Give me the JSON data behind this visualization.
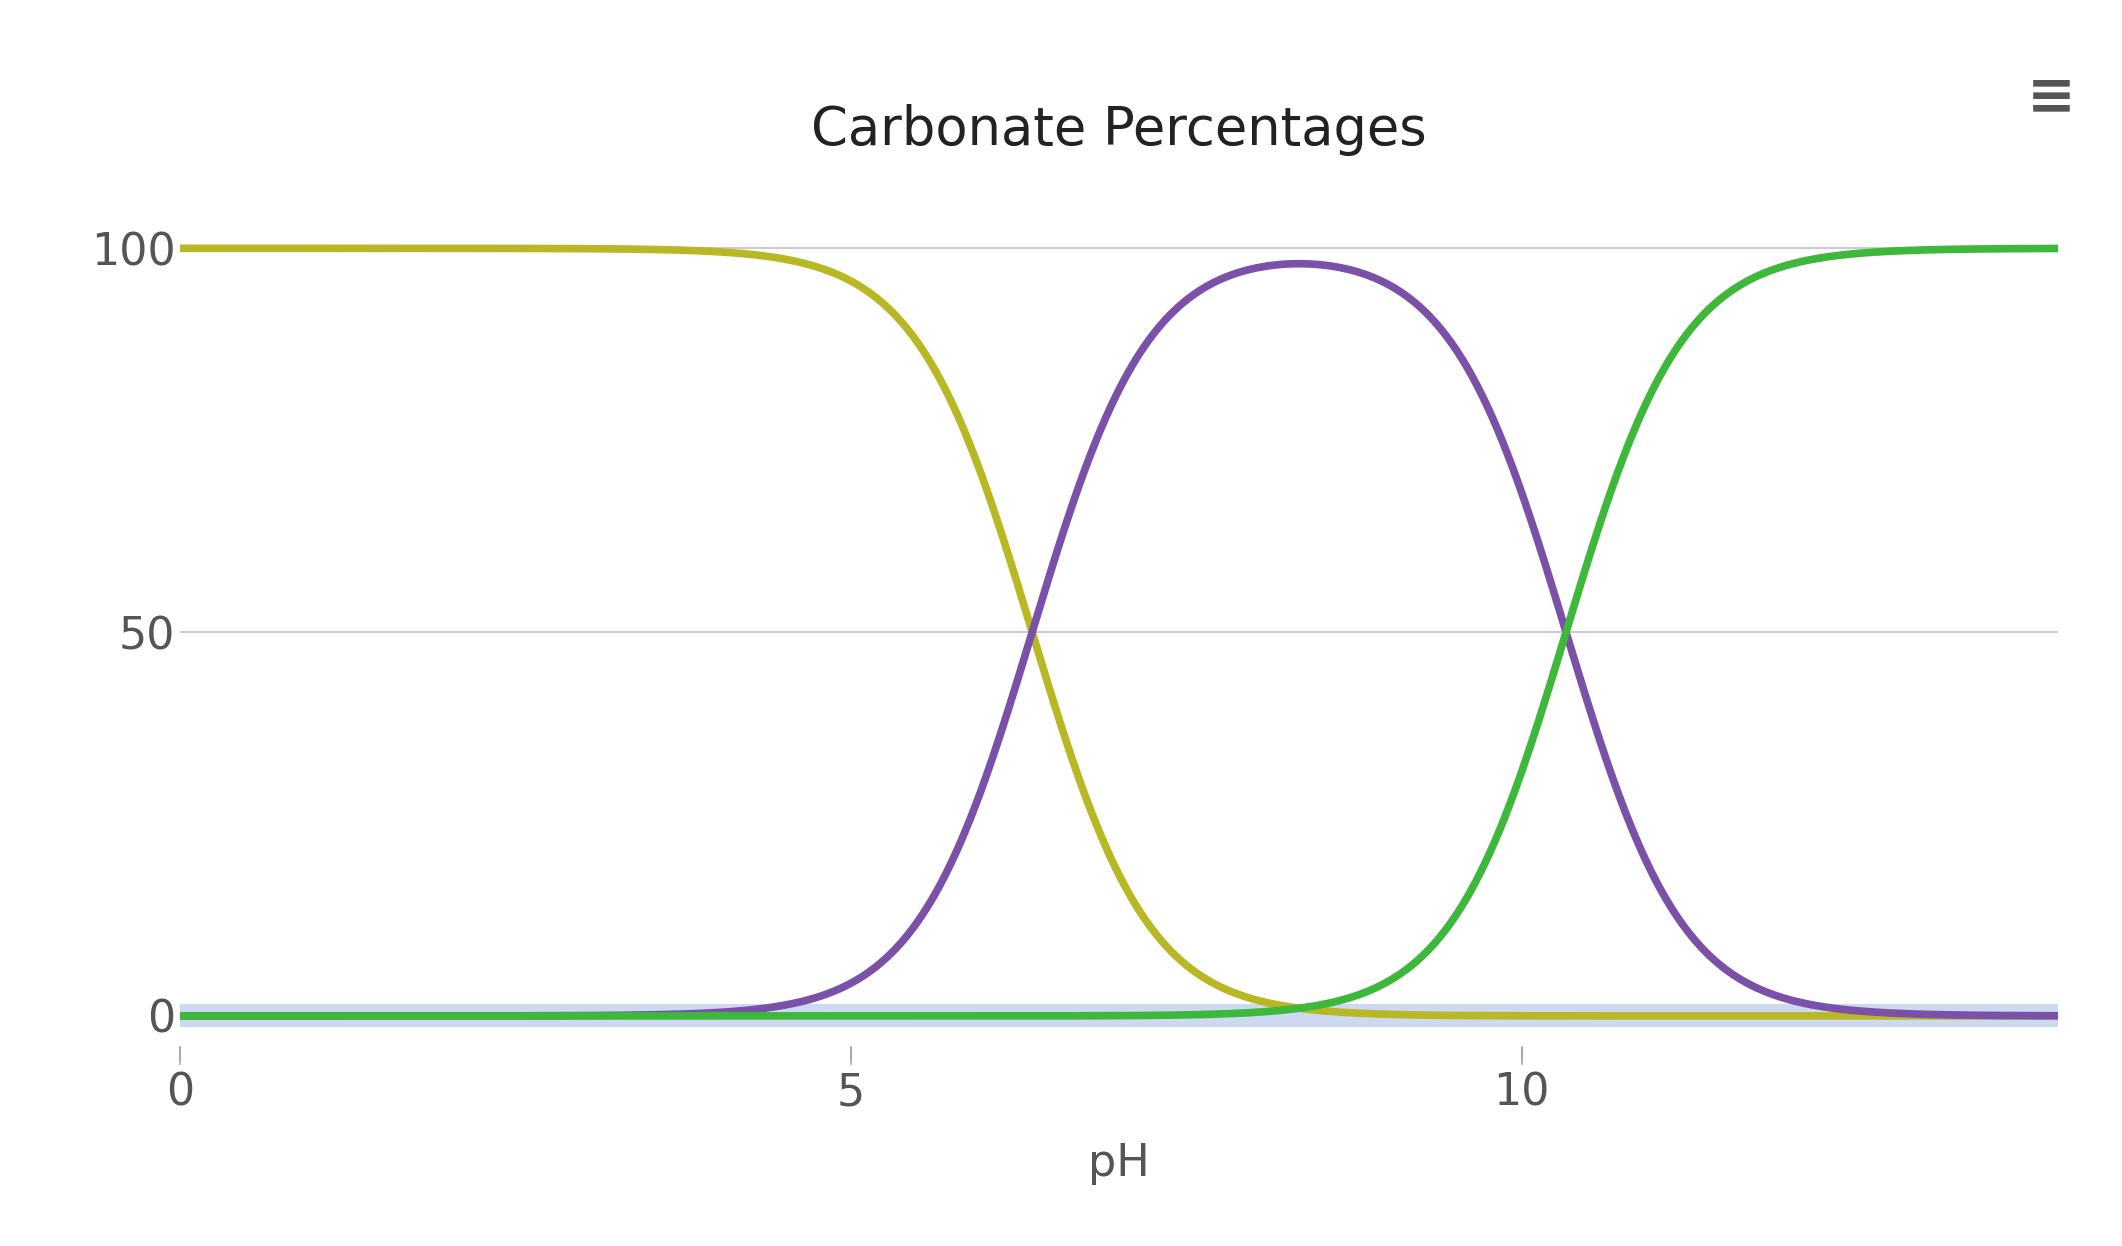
{
  "title": "Carbonate Percentages",
  "xlabel": "pH",
  "xlim": [
    0,
    14
  ],
  "ylim": [
    -4,
    108
  ],
  "xticks": [
    0,
    5,
    10
  ],
  "yticks": [
    0,
    50,
    100
  ],
  "pH_range": [
    0,
    14
  ],
  "pKa1": 6.35,
  "pKa2": 10.33,
  "line_colors": {
    "H2CO3": "#b8b825",
    "HCO3": "#7b50a8",
    "CO3": "#3db83a",
    "band": "#ccd9f0"
  },
  "line_width": 5.5,
  "background_color": "#ffffff",
  "grid_color": "#cccccc",
  "title_fontsize": 38,
  "tick_fontsize": 32,
  "label_fontsize": 32,
  "hamburger_color": "#555555",
  "hamburger_fontsize": 42,
  "bottom_strip_color": "#e8e8e8",
  "tick_color": "#aaaaaa",
  "label_color": "#555555",
  "blue_band_y": -1.5,
  "blue_band_height": 3.0
}
